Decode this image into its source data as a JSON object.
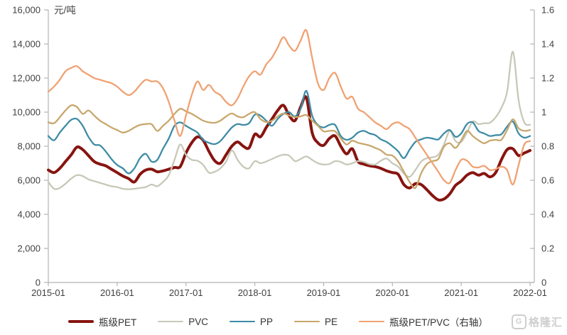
{
  "chart_data": {
    "type": "line",
    "title": "",
    "unit_left": "元/吨",
    "x_interval": "monthly",
    "x_start": "2015-01",
    "x_end": "2022-01",
    "x_tick_labels": [
      "2015-01",
      "2016-01",
      "2017-01",
      "2018-01",
      "2019-01",
      "2020-01",
      "2021-01",
      "2022-01"
    ],
    "y_left": {
      "min": 0,
      "max": 16000,
      "step": 2000,
      "tick_labels": [
        "0",
        "2,000",
        "4,000",
        "6,000",
        "8,000",
        "10,000",
        "12,000",
        "14,000",
        "16,000"
      ]
    },
    "y_right": {
      "min": 0,
      "max": 1.6,
      "step": 0.2,
      "tick_labels": [
        "0",
        "0.2",
        "0.4",
        "0.6",
        "0.8",
        "1",
        "1.2",
        "1.4",
        "1.6"
      ]
    },
    "grid": false,
    "legend_position": "bottom",
    "series": [
      {
        "name": "瓶级PET",
        "color": "#871410",
        "axis": "left",
        "line_width": 4,
        "values": [
          6600,
          6450,
          6700,
          7100,
          7500,
          7950,
          7800,
          7450,
          7100,
          6950,
          6850,
          6650,
          6450,
          6250,
          6100,
          5900,
          6350,
          6600,
          6650,
          6500,
          6550,
          6650,
          6750,
          6800,
          7600,
          8200,
          8550,
          8350,
          7700,
          7150,
          7000,
          7500,
          8000,
          8250,
          8000,
          7900,
          8700,
          8550,
          9100,
          9600,
          10100,
          10400,
          9800,
          9500,
          10300,
          10850,
          8800,
          8200,
          8050,
          8450,
          8600,
          8000,
          7550,
          7850,
          7100,
          6950,
          6850,
          6800,
          6700,
          6550,
          6450,
          6350,
          5750,
          5550,
          5800,
          5750,
          5450,
          5100,
          4850,
          4900,
          5200,
          5700,
          5950,
          6300,
          6450,
          6300,
          6400,
          6200,
          6450,
          7200,
          7800,
          7850,
          7450,
          7600,
          7750
        ]
      },
      {
        "name": "PVC",
        "color": "#c8c8b8",
        "axis": "left",
        "line_width": 2.3,
        "values": [
          5900,
          5500,
          5550,
          5800,
          6100,
          6300,
          6250,
          6050,
          5950,
          5850,
          5750,
          5650,
          5600,
          5500,
          5475,
          5500,
          5550,
          5600,
          5750,
          5650,
          5900,
          6300,
          7200,
          8100,
          7500,
          7200,
          7150,
          6900,
          6450,
          6500,
          6700,
          7100,
          7750,
          7200,
          6800,
          6700,
          7125,
          7000,
          7100,
          7250,
          7400,
          7500,
          7450,
          7125,
          7250,
          7400,
          7200,
          7000,
          6925,
          6950,
          7125,
          7080,
          6925,
          7000,
          7125,
          7080,
          6950,
          6925,
          7150,
          7275,
          7000,
          6800,
          6400,
          6200,
          6600,
          7100,
          7300,
          7350,
          7500,
          8100,
          8900,
          8300,
          8250,
          8800,
          9450,
          9300,
          9350,
          9375,
          9700,
          10250,
          11200,
          13550,
          10700,
          9400,
          9250
        ]
      },
      {
        "name": "PP",
        "color": "#3e8ca5",
        "axis": "left",
        "line_width": 2.3,
        "values": [
          8600,
          8350,
          8800,
          9200,
          9550,
          9600,
          9200,
          8550,
          8100,
          8050,
          7700,
          7250,
          6900,
          6700,
          6400,
          6700,
          7300,
          7550,
          7100,
          7200,
          7850,
          8450,
          9200,
          9400,
          9200,
          9000,
          8800,
          8375,
          8200,
          8125,
          8300,
          8700,
          9100,
          9300,
          9250,
          9350,
          9850,
          9800,
          9500,
          9200,
          9600,
          9900,
          10000,
          9750,
          10200,
          11250,
          9800,
          9250,
          9100,
          9250,
          9250,
          8600,
          8375,
          8500,
          8800,
          8900,
          8750,
          8650,
          8400,
          8250,
          8000,
          7700,
          7300,
          7800,
          8250,
          8400,
          8500,
          8450,
          8400,
          8750,
          8950,
          8550,
          8750,
          9300,
          9400,
          8900,
          8750,
          8600,
          8650,
          8700,
          9150,
          9450,
          8750,
          8500,
          8600
        ]
      },
      {
        "name": "PE",
        "color": "#c8a76c",
        "axis": "left",
        "line_width": 2.3,
        "values": [
          9400,
          9350,
          9700,
          10100,
          10400,
          10300,
          9900,
          10100,
          9800,
          9500,
          9300,
          9100,
          8950,
          8800,
          8900,
          9100,
          9250,
          9300,
          9290,
          8900,
          9200,
          9500,
          9900,
          10200,
          10050,
          9900,
          9700,
          9500,
          9400,
          9375,
          9500,
          9750,
          9920,
          9750,
          9700,
          9900,
          10000,
          9600,
          9420,
          9500,
          9750,
          9920,
          9800,
          9710,
          9750,
          9830,
          9500,
          9210,
          8875,
          8900,
          8875,
          8460,
          8100,
          8325,
          8200,
          8125,
          8040,
          7900,
          7750,
          7500,
          7450,
          7100,
          6500,
          5900,
          5550,
          6400,
          6950,
          7125,
          7250,
          7975,
          8175,
          7900,
          8350,
          8900,
          8600,
          8350,
          8175,
          8325,
          8375,
          8375,
          8950,
          9580,
          9050,
          8900,
          8950
        ]
      },
      {
        "name": "瓶级PET/PVC（右轴）",
        "color": "#efa273",
        "axis": "right",
        "line_width": 2.3,
        "values": [
          1.12,
          1.15,
          1.19,
          1.24,
          1.26,
          1.27,
          1.24,
          1.22,
          1.2,
          1.19,
          1.18,
          1.17,
          1.15,
          1.12,
          1.1,
          1.12,
          1.16,
          1.19,
          1.18,
          1.18,
          1.14,
          1.06,
          0.95,
          0.86,
          0.98,
          1.1,
          1.18,
          1.13,
          1.16,
          1.12,
          1.1,
          1.06,
          1.04,
          1.08,
          1.15,
          1.21,
          1.24,
          1.22,
          1.28,
          1.32,
          1.38,
          1.44,
          1.39,
          1.36,
          1.42,
          1.48,
          1.32,
          1.17,
          1.13,
          1.2,
          1.23,
          1.15,
          1.08,
          1.09,
          1.02,
          1.0,
          0.97,
          0.94,
          0.92,
          0.9,
          0.93,
          0.94,
          0.92,
          0.9,
          0.85,
          0.8,
          0.75,
          0.7,
          0.65,
          0.6,
          0.585,
          0.66,
          0.72,
          0.715,
          0.68,
          0.675,
          0.685,
          0.66,
          0.665,
          0.68,
          0.66,
          0.575,
          0.69,
          0.81,
          0.83
        ]
      }
    ]
  },
  "legend": {
    "items": [
      "瓶级PET",
      "PVC",
      "PP",
      "PE",
      "瓶级PET/PVC（右轴）"
    ]
  },
  "watermark": {
    "logo_letter": "G",
    "text": "格隆汇"
  },
  "colors": {
    "axis_line": "#b3b3b3",
    "tick_text": "#404040",
    "background": "#ffffff"
  }
}
